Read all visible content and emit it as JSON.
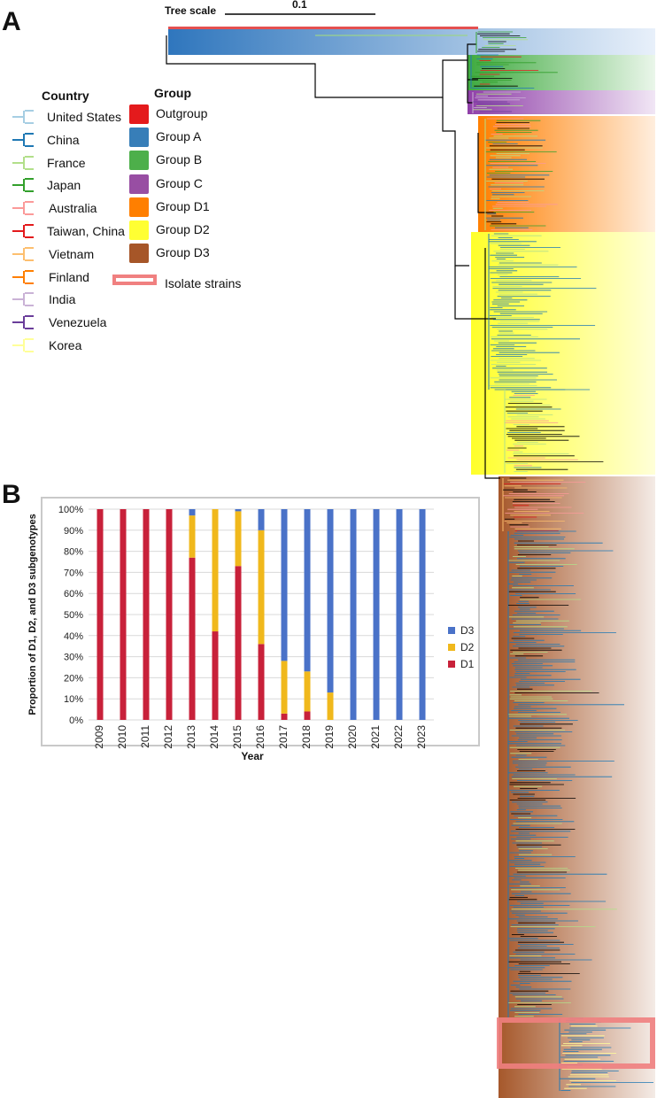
{
  "panels": {
    "a": "A",
    "b": "B"
  },
  "tree": {
    "scale_label": "Tree scale",
    "scale_value": "0.1"
  },
  "legend": {
    "country_title": "Country",
    "countries": [
      {
        "name": "United States",
        "color": "#a6cee3"
      },
      {
        "name": "China",
        "color": "#1f78b4"
      },
      {
        "name": "France",
        "color": "#b2df8a"
      },
      {
        "name": "Japan",
        "color": "#33a02c"
      },
      {
        "name": "Australia",
        "color": "#fb9a99"
      },
      {
        "name": "Taiwan, China",
        "color": "#e31a1c"
      },
      {
        "name": "Vietnam",
        "color": "#fdbf6f"
      },
      {
        "name": "Finland",
        "color": "#ff7f00"
      },
      {
        "name": "India",
        "color": "#cab2d6"
      },
      {
        "name": "Venezuela",
        "color": "#6a3d9a"
      },
      {
        "name": "Korea",
        "color": "#ffff99"
      }
    ],
    "group_title": "Group",
    "groups": [
      {
        "name": "Outgroup",
        "color": "#e41a1c"
      },
      {
        "name": "Group A",
        "color": "#377eb8"
      },
      {
        "name": "Group B",
        "color": "#4daf4a"
      },
      {
        "name": "Group C",
        "color": "#984ea3"
      },
      {
        "name": "Group D1",
        "color": "#ff7f00"
      },
      {
        "name": "Group D2",
        "color": "#ffff33"
      },
      {
        "name": "Group D3",
        "color": "#a65628"
      }
    ],
    "isolate_label": "Isolate strains",
    "isolate_color": "#f08080"
  },
  "chart_data": {
    "type": "bar",
    "stacked": true,
    "categories": [
      "2009",
      "2010",
      "2011",
      "2012",
      "2013",
      "2014",
      "2015",
      "2016",
      "2017",
      "2018",
      "2019",
      "2020",
      "2021",
      "2022",
      "2023"
    ],
    "series": [
      {
        "name": "D1",
        "color": "#c8213a",
        "values": [
          100,
          100,
          100,
          100,
          77,
          42,
          73,
          36,
          3,
          4,
          0,
          0,
          0,
          0,
          0
        ]
      },
      {
        "name": "D2",
        "color": "#f0b81c",
        "values": [
          0,
          0,
          0,
          0,
          20,
          58,
          26,
          54,
          25,
          19,
          13,
          0,
          0,
          0,
          0
        ]
      },
      {
        "name": "D3",
        "color": "#4a72c8",
        "values": [
          0,
          0,
          0,
          0,
          3,
          0,
          1,
          10,
          72,
          77,
          87,
          100,
          100,
          100,
          100
        ]
      }
    ],
    "xlabel": "Year",
    "ylabel": "Proportion of D1, D2, and D3 subgenotypes",
    "ylim": [
      0,
      100
    ],
    "yticks": [
      "0%",
      "10%",
      "20%",
      "30%",
      "40%",
      "50%",
      "60%",
      "70%",
      "80%",
      "90%",
      "100%"
    ],
    "grid": true,
    "legend_position": "right"
  }
}
